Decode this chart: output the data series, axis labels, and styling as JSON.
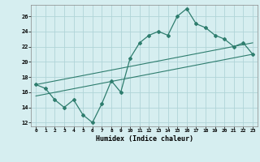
{
  "xlabel": "Humidex (Indice chaleur)",
  "ylabel": "",
  "bg_color": "#d6eef0",
  "grid_color": "#b0d4d8",
  "line_color": "#2e7d6e",
  "xlim": [
    -0.5,
    23.5
  ],
  "ylim": [
    11.5,
    27.5
  ],
  "xticks": [
    0,
    1,
    2,
    3,
    4,
    5,
    6,
    7,
    8,
    9,
    10,
    11,
    12,
    13,
    14,
    15,
    16,
    17,
    18,
    19,
    20,
    21,
    22,
    23
  ],
  "yticks": [
    12,
    14,
    16,
    18,
    20,
    22,
    24,
    26
  ],
  "main_x": [
    0,
    1,
    2,
    3,
    4,
    5,
    6,
    7,
    8,
    9,
    10,
    11,
    12,
    13,
    14,
    15,
    16,
    17,
    18,
    19,
    20,
    21,
    22,
    23
  ],
  "main_y": [
    17.0,
    16.5,
    15.0,
    14.0,
    15.0,
    13.0,
    12.0,
    14.5,
    17.5,
    16.0,
    20.5,
    22.5,
    23.5,
    24.0,
    23.5,
    26.0,
    27.0,
    25.0,
    24.5,
    23.5,
    23.0,
    22.0,
    22.5,
    21.0
  ],
  "line1_x": [
    0,
    23
  ],
  "line1_y": [
    17.0,
    22.5
  ],
  "line2_x": [
    0,
    23
  ],
  "line2_y": [
    15.5,
    21.0
  ]
}
